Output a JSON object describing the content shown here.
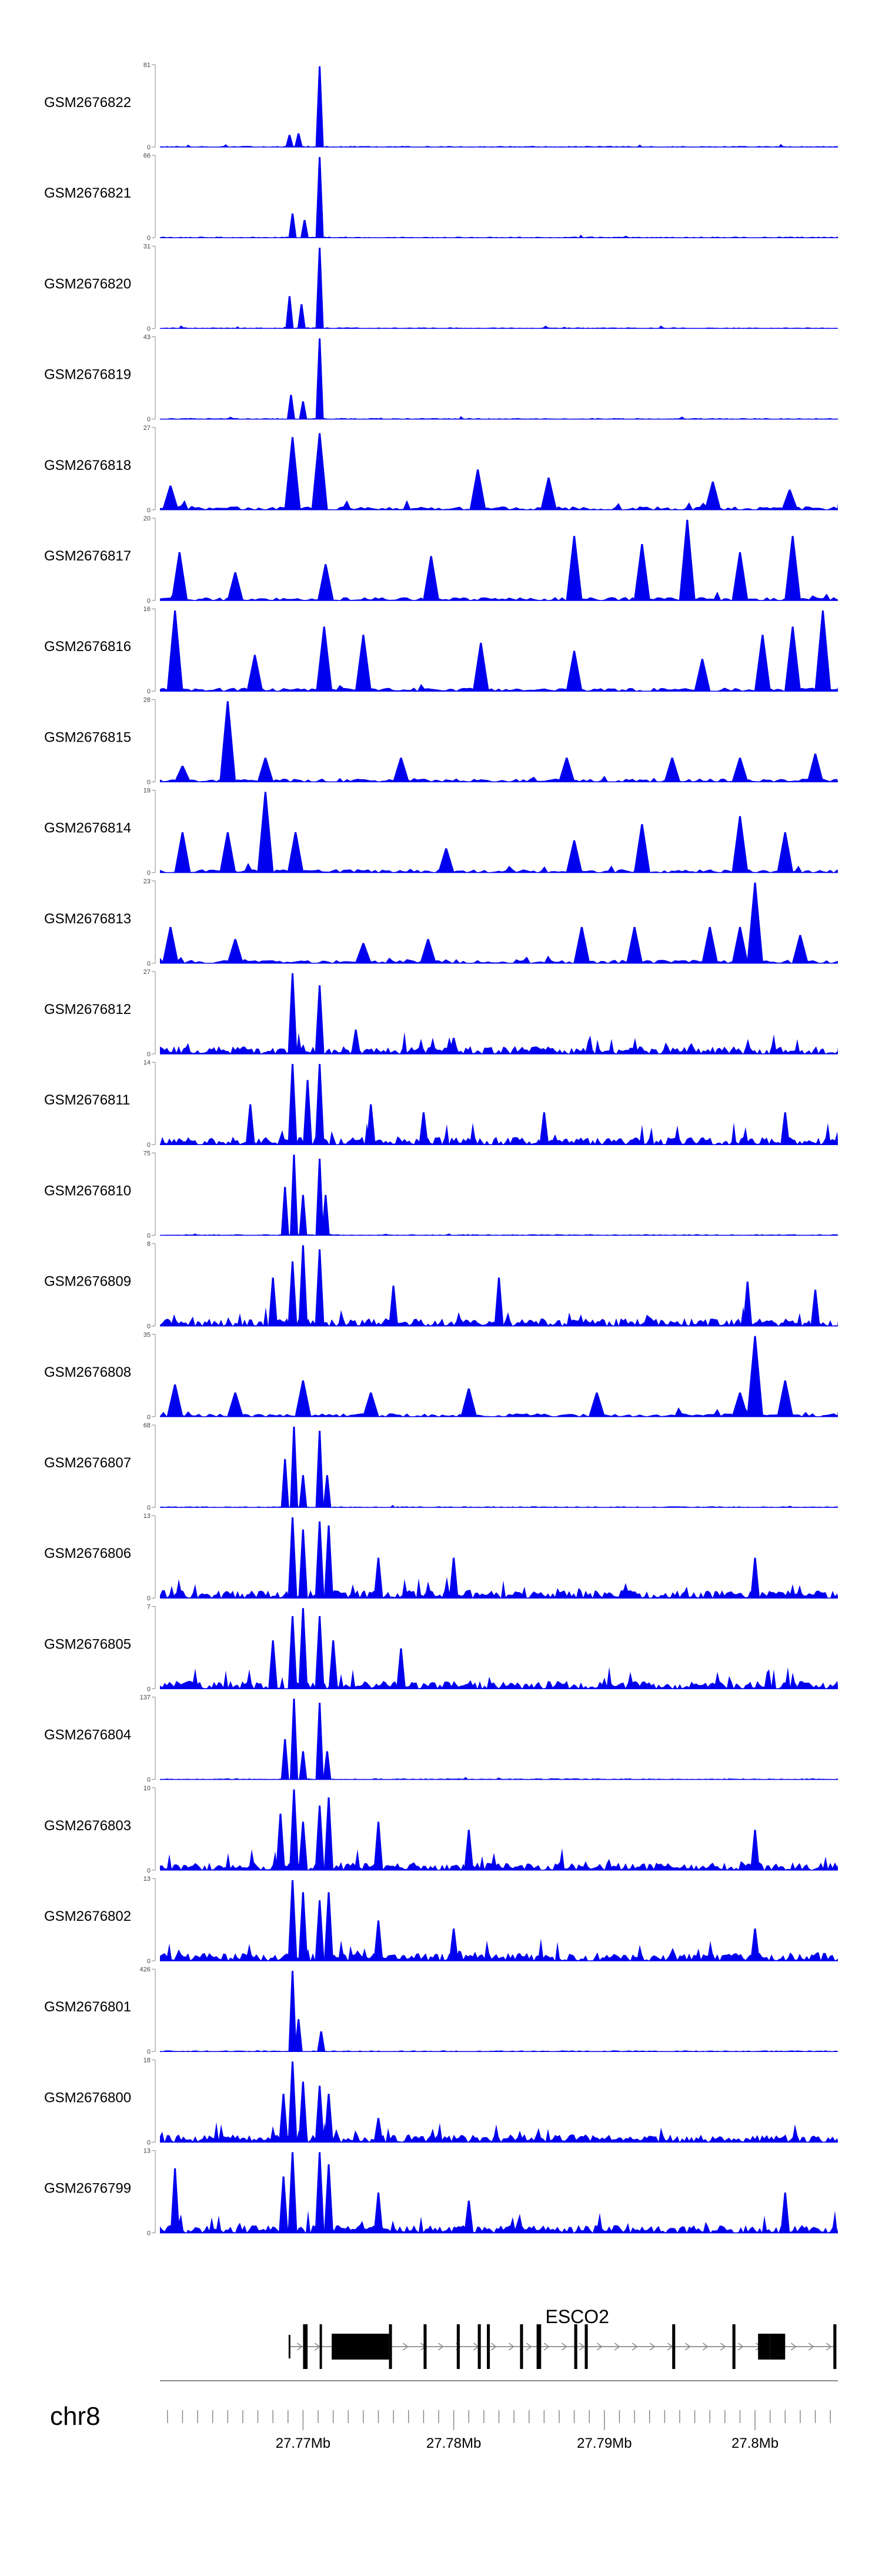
{
  "chart_data": {
    "type": "area",
    "title": "",
    "region": {
      "chromosome": "chr8",
      "start_mb": 27.7605,
      "end_mb": 27.8055
    },
    "colors": {
      "track": "#0000ee",
      "axis": "#888888",
      "text": "#000000"
    },
    "tracks": [
      {
        "name": "GSM2676822",
        "ymax": "81",
        "profile": "focal",
        "peaks": [
          [
            27.7691,
            0.15
          ],
          [
            27.7697,
            0.17
          ],
          [
            27.7711,
            1.0
          ]
        ]
      },
      {
        "name": "GSM2676821",
        "ymax": "66",
        "profile": "focal",
        "peaks": [
          [
            27.7693,
            0.3
          ],
          [
            27.7701,
            0.22
          ],
          [
            27.7711,
            1.0
          ]
        ]
      },
      {
        "name": "GSM2676820",
        "ymax": "31",
        "profile": "focal",
        "peaks": [
          [
            27.7691,
            0.4
          ],
          [
            27.7699,
            0.3
          ],
          [
            27.7711,
            1.0
          ]
        ]
      },
      {
        "name": "GSM2676819",
        "ymax": "43",
        "profile": "focal",
        "peaks": [
          [
            27.7692,
            0.3
          ],
          [
            27.77,
            0.22
          ],
          [
            27.7711,
            1.0
          ]
        ]
      },
      {
        "name": "GSM2676818",
        "ymax": "27",
        "profile": "sparse",
        "peaks": [
          [
            27.7612,
            0.3
          ],
          [
            27.7693,
            0.9
          ],
          [
            27.7711,
            0.95
          ],
          [
            27.7816,
            0.5
          ],
          [
            27.7863,
            0.4
          ],
          [
            27.7972,
            0.35
          ],
          [
            27.8023,
            0.25
          ]
        ]
      },
      {
        "name": "GSM2676817",
        "ymax": "20",
        "profile": "sparse",
        "peaks": [
          [
            27.7618,
            0.6
          ],
          [
            27.7655,
            0.35
          ],
          [
            27.7715,
            0.45
          ],
          [
            27.7785,
            0.55
          ],
          [
            27.788,
            0.8
          ],
          [
            27.7925,
            0.7
          ],
          [
            27.7955,
            1.0
          ],
          [
            27.799,
            0.6
          ],
          [
            27.8025,
            0.8
          ]
        ]
      },
      {
        "name": "GSM2676816",
        "ymax": "16",
        "profile": "sparse",
        "peaks": [
          [
            27.7615,
            1.0
          ],
          [
            27.7668,
            0.45
          ],
          [
            27.7714,
            0.8
          ],
          [
            27.774,
            0.7
          ],
          [
            27.7818,
            0.6
          ],
          [
            27.788,
            0.5
          ],
          [
            27.7965,
            0.4
          ],
          [
            27.8005,
            0.7
          ],
          [
            27.8025,
            0.8
          ],
          [
            27.8045,
            1.0
          ]
        ]
      },
      {
        "name": "GSM2676815",
        "ymax": "28",
        "profile": "sparse",
        "peaks": [
          [
            27.762,
            0.2
          ],
          [
            27.765,
            1.0
          ],
          [
            27.7675,
            0.3
          ],
          [
            27.7765,
            0.3
          ],
          [
            27.7875,
            0.3
          ],
          [
            27.7945,
            0.3
          ],
          [
            27.799,
            0.3
          ],
          [
            27.804,
            0.35
          ]
        ]
      },
      {
        "name": "GSM2676814",
        "ymax": "19",
        "profile": "sparse",
        "peaks": [
          [
            27.762,
            0.5
          ],
          [
            27.765,
            0.5
          ],
          [
            27.7675,
            1.0
          ],
          [
            27.7695,
            0.5
          ],
          [
            27.7795,
            0.3
          ],
          [
            27.788,
            0.4
          ],
          [
            27.7925,
            0.6
          ],
          [
            27.799,
            0.7
          ],
          [
            27.802,
            0.5
          ]
        ]
      },
      {
        "name": "GSM2676813",
        "ymax": "23",
        "profile": "sparse",
        "peaks": [
          [
            27.7612,
            0.45
          ],
          [
            27.7655,
            0.3
          ],
          [
            27.774,
            0.25
          ],
          [
            27.7783,
            0.3
          ],
          [
            27.7885,
            0.45
          ],
          [
            27.792,
            0.45
          ],
          [
            27.797,
            0.45
          ],
          [
            27.799,
            0.45
          ],
          [
            27.8,
            1.0
          ],
          [
            27.803,
            0.35
          ]
        ]
      },
      {
        "name": "GSM2676812",
        "ymax": "27",
        "profile": "dense",
        "peaks": [
          [
            27.7693,
            1.0
          ],
          [
            27.7711,
            0.85
          ],
          [
            27.7735,
            0.3
          ],
          [
            27.78,
            0.2
          ]
        ]
      },
      {
        "name": "GSM2676811",
        "ymax": "14",
        "profile": "dense",
        "peaks": [
          [
            27.7665,
            0.5
          ],
          [
            27.7693,
            1.0
          ],
          [
            27.7703,
            0.8
          ],
          [
            27.7711,
            1.0
          ],
          [
            27.7745,
            0.5
          ],
          [
            27.778,
            0.4
          ],
          [
            27.786,
            0.4
          ],
          [
            27.802,
            0.4
          ]
        ]
      },
      {
        "name": "GSM2676810",
        "ymax": "75",
        "profile": "focal",
        "peaks": [
          [
            27.7688,
            0.6
          ],
          [
            27.7694,
            1.0
          ],
          [
            27.77,
            0.5
          ],
          [
            27.7711,
            0.95
          ],
          [
            27.7715,
            0.5
          ]
        ]
      },
      {
        "name": "GSM2676809",
        "ymax": "8",
        "profile": "dense",
        "peaks": [
          [
            27.768,
            0.6
          ],
          [
            27.7693,
            0.8
          ],
          [
            27.77,
            1.0
          ],
          [
            27.7711,
            0.95
          ],
          [
            27.776,
            0.5
          ],
          [
            27.783,
            0.6
          ],
          [
            27.7995,
            0.55
          ],
          [
            27.804,
            0.45
          ]
        ]
      },
      {
        "name": "GSM2676808",
        "ymax": "35",
        "profile": "sparse",
        "peaks": [
          [
            27.7615,
            0.4
          ],
          [
            27.7655,
            0.3
          ],
          [
            27.77,
            0.45
          ],
          [
            27.7745,
            0.3
          ],
          [
            27.781,
            0.35
          ],
          [
            27.7895,
            0.3
          ],
          [
            27.799,
            0.3
          ],
          [
            27.8,
            1.0
          ],
          [
            27.802,
            0.45
          ]
        ]
      },
      {
        "name": "GSM2676807",
        "ymax": "68",
        "profile": "focal",
        "peaks": [
          [
            27.7688,
            0.6
          ],
          [
            27.7694,
            1.0
          ],
          [
            27.77,
            0.4
          ],
          [
            27.7711,
            0.95
          ],
          [
            27.7716,
            0.4
          ]
        ]
      },
      {
        "name": "GSM2676806",
        "ymax": "13",
        "profile": "dense",
        "peaks": [
          [
            27.7693,
            1.0
          ],
          [
            27.77,
            0.85
          ],
          [
            27.7711,
            0.95
          ],
          [
            27.7717,
            0.9
          ],
          [
            27.775,
            0.5
          ],
          [
            27.78,
            0.5
          ],
          [
            27.8,
            0.5
          ]
        ]
      },
      {
        "name": "GSM2676805",
        "ymax": "7",
        "profile": "dense",
        "peaks": [
          [
            27.768,
            0.6
          ],
          [
            27.7693,
            0.9
          ],
          [
            27.77,
            1.0
          ],
          [
            27.7711,
            0.9
          ],
          [
            27.772,
            0.6
          ],
          [
            27.7765,
            0.5
          ]
        ]
      },
      {
        "name": "GSM2676804",
        "ymax": "137",
        "profile": "focal",
        "peaks": [
          [
            27.7688,
            0.5
          ],
          [
            27.7694,
            1.0
          ],
          [
            27.77,
            0.35
          ],
          [
            27.7711,
            0.95
          ],
          [
            27.7716,
            0.35
          ]
        ]
      },
      {
        "name": "GSM2676803",
        "ymax": "10",
        "profile": "dense",
        "peaks": [
          [
            27.7685,
            0.7
          ],
          [
            27.7694,
            1.0
          ],
          [
            27.77,
            0.6
          ],
          [
            27.7711,
            0.8
          ],
          [
            27.7717,
            0.9
          ],
          [
            27.775,
            0.6
          ],
          [
            27.781,
            0.5
          ],
          [
            27.8,
            0.5
          ]
        ]
      },
      {
        "name": "GSM2676802",
        "ymax": "13",
        "profile": "dense",
        "peaks": [
          [
            27.7693,
            1.0
          ],
          [
            27.77,
            0.85
          ],
          [
            27.7711,
            0.75
          ],
          [
            27.7717,
            0.85
          ],
          [
            27.775,
            0.5
          ],
          [
            27.78,
            0.4
          ],
          [
            27.8,
            0.4
          ]
        ]
      },
      {
        "name": "GSM2676801",
        "ymax": "426",
        "profile": "focal",
        "peaks": [
          [
            27.7693,
            1.0
          ],
          [
            27.7697,
            0.4
          ],
          [
            27.7712,
            0.25
          ]
        ]
      },
      {
        "name": "GSM2676800",
        "ymax": "18",
        "profile": "dense",
        "peaks": [
          [
            27.7687,
            0.6
          ],
          [
            27.7693,
            1.0
          ],
          [
            27.77,
            0.75
          ],
          [
            27.7711,
            0.7
          ],
          [
            27.7717,
            0.6
          ],
          [
            27.775,
            0.3
          ]
        ]
      },
      {
        "name": "GSM2676799",
        "ymax": "13",
        "profile": "dense",
        "peaks": [
          [
            27.7615,
            0.8
          ],
          [
            27.7687,
            0.7
          ],
          [
            27.7693,
            1.0
          ],
          [
            27.7711,
            1.0
          ],
          [
            27.7717,
            0.85
          ],
          [
            27.775,
            0.5
          ],
          [
            27.781,
            0.4
          ],
          [
            27.802,
            0.5
          ]
        ]
      }
    ],
    "gene": {
      "name": "ESCO2",
      "strand": "+",
      "tx_start_mb": 27.7691,
      "tx_end_mb": 27.8054,
      "exons_mb": [
        [
          27.77,
          27.7703
        ],
        [
          27.7711,
          27.7712
        ],
        [
          27.7719,
          27.7726
        ],
        [
          27.7726,
          27.7757
        ],
        [
          27.7757,
          27.7759
        ],
        [
          27.778,
          27.7782
        ],
        [
          27.7802,
          27.7804
        ],
        [
          27.7816,
          27.7818
        ],
        [
          27.7822,
          27.7824
        ],
        [
          27.7844,
          27.7846
        ],
        [
          27.7855,
          27.7858
        ],
        [
          27.788,
          27.7882
        ],
        [
          27.7887,
          27.7889
        ],
        [
          27.7945,
          27.7947
        ],
        [
          27.7985,
          27.7987
        ],
        [
          27.8002,
          27.801
        ],
        [
          27.801,
          27.802
        ],
        [
          27.8052,
          27.8054
        ]
      ]
    },
    "xaxis": {
      "ticks_mb": [
        27.761,
        27.762,
        27.763,
        27.764,
        27.765,
        27.766,
        27.767,
        27.768,
        27.769,
        27.77,
        27.771,
        27.772,
        27.773,
        27.774,
        27.775,
        27.776,
        27.777,
        27.778,
        27.779,
        27.78,
        27.781,
        27.782,
        27.783,
        27.784,
        27.785,
        27.786,
        27.787,
        27.788,
        27.789,
        27.79,
        27.791,
        27.792,
        27.793,
        27.794,
        27.795,
        27.796,
        27.797,
        27.798,
        27.799,
        27.8,
        27.801,
        27.802,
        27.803,
        27.804,
        27.805
      ],
      "major_ticks_mb": [
        27.77,
        27.78,
        27.79,
        27.8
      ],
      "major_labels": [
        "27.77Mb",
        "27.78Mb",
        "27.79Mb",
        "27.8Mb"
      ]
    }
  }
}
